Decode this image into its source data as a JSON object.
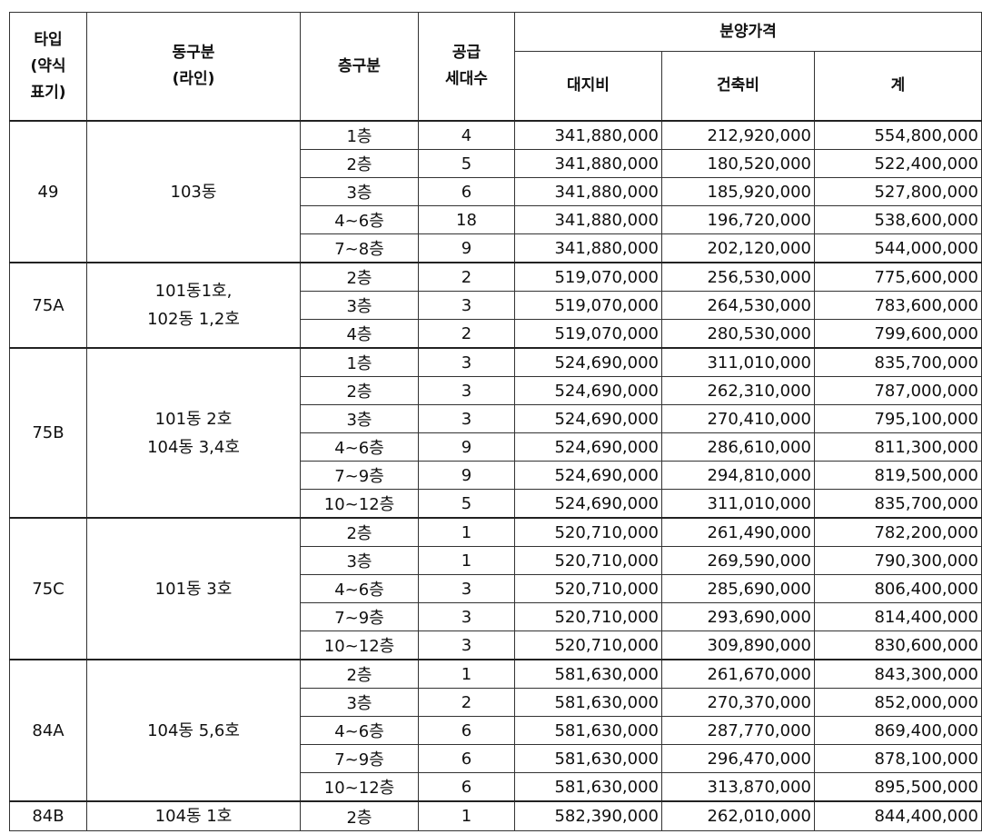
{
  "headers": {
    "type": [
      "타입",
      "(약식",
      "표기)"
    ],
    "building": [
      "동구분",
      "(라인)"
    ],
    "floor": "층구분",
    "units": [
      "공급",
      "세대수"
    ],
    "price_group": "분양가격",
    "land": "대지비",
    "construction": "건축비",
    "total": "계"
  },
  "groups": [
    {
      "type": "49",
      "building": [
        "103동"
      ],
      "rows": [
        {
          "floor": "1층",
          "units": "4",
          "land": "341,880,000",
          "construction": "212,920,000",
          "total": "554,800,000"
        },
        {
          "floor": "2층",
          "units": "5",
          "land": "341,880,000",
          "construction": "180,520,000",
          "total": "522,400,000"
        },
        {
          "floor": "3층",
          "units": "6",
          "land": "341,880,000",
          "construction": "185,920,000",
          "total": "527,800,000"
        },
        {
          "floor": "4~6층",
          "units": "18",
          "land": "341,880,000",
          "construction": "196,720,000",
          "total": "538,600,000"
        },
        {
          "floor": "7~8층",
          "units": "9",
          "land": "341,880,000",
          "construction": "202,120,000",
          "total": "544,000,000"
        }
      ]
    },
    {
      "type": "75A",
      "building": [
        "101동1호,",
        "102동 1,2호"
      ],
      "rows": [
        {
          "floor": "2층",
          "units": "2",
          "land": "519,070,000",
          "construction": "256,530,000",
          "total": "775,600,000"
        },
        {
          "floor": "3층",
          "units": "3",
          "land": "519,070,000",
          "construction": "264,530,000",
          "total": "783,600,000"
        },
        {
          "floor": "4층",
          "units": "2",
          "land": "519,070,000",
          "construction": "280,530,000",
          "total": "799,600,000"
        }
      ]
    },
    {
      "type": "75B",
      "building": [
        "101동 2호",
        "104동 3,4호"
      ],
      "rows": [
        {
          "floor": "1층",
          "units": "3",
          "land": "524,690,000",
          "construction": "311,010,000",
          "total": "835,700,000"
        },
        {
          "floor": "2층",
          "units": "3",
          "land": "524,690,000",
          "construction": "262,310,000",
          "total": "787,000,000"
        },
        {
          "floor": "3층",
          "units": "3",
          "land": "524,690,000",
          "construction": "270,410,000",
          "total": "795,100,000"
        },
        {
          "floor": "4~6층",
          "units": "9",
          "land": "524,690,000",
          "construction": "286,610,000",
          "total": "811,300,000"
        },
        {
          "floor": "7~9층",
          "units": "9",
          "land": "524,690,000",
          "construction": "294,810,000",
          "total": "819,500,000"
        },
        {
          "floor": "10~12층",
          "units": "5",
          "land": "524,690,000",
          "construction": "311,010,000",
          "total": "835,700,000"
        }
      ]
    },
    {
      "type": "75C",
      "building": [
        "101동 3호"
      ],
      "rows": [
        {
          "floor": "2층",
          "units": "1",
          "land": "520,710,000",
          "construction": "261,490,000",
          "total": "782,200,000"
        },
        {
          "floor": "3층",
          "units": "1",
          "land": "520,710,000",
          "construction": "269,590,000",
          "total": "790,300,000"
        },
        {
          "floor": "4~6층",
          "units": "3",
          "land": "520,710,000",
          "construction": "285,690,000",
          "total": "806,400,000"
        },
        {
          "floor": "7~9층",
          "units": "3",
          "land": "520,710,000",
          "construction": "293,690,000",
          "total": "814,400,000"
        },
        {
          "floor": "10~12층",
          "units": "3",
          "land": "520,710,000",
          "construction": "309,890,000",
          "total": "830,600,000"
        }
      ]
    },
    {
      "type": "84A",
      "building": [
        "104동 5,6호"
      ],
      "rows": [
        {
          "floor": "2층",
          "units": "1",
          "land": "581,630,000",
          "construction": "261,670,000",
          "total": "843,300,000"
        },
        {
          "floor": "3층",
          "units": "2",
          "land": "581,630,000",
          "construction": "270,370,000",
          "total": "852,000,000"
        },
        {
          "floor": "4~6층",
          "units": "6",
          "land": "581,630,000",
          "construction": "287,770,000",
          "total": "869,400,000"
        },
        {
          "floor": "7~9층",
          "units": "6",
          "land": "581,630,000",
          "construction": "296,470,000",
          "total": "878,100,000"
        },
        {
          "floor": "10~12층",
          "units": "6",
          "land": "581,630,000",
          "construction": "313,870,000",
          "total": "895,500,000"
        }
      ]
    },
    {
      "type": "84B",
      "building": [
        "104동 1호"
      ],
      "rows": [
        {
          "floor": "2층",
          "units": "1",
          "land": "582,390,000",
          "construction": "262,010,000",
          "total": "844,400,000"
        }
      ]
    }
  ]
}
